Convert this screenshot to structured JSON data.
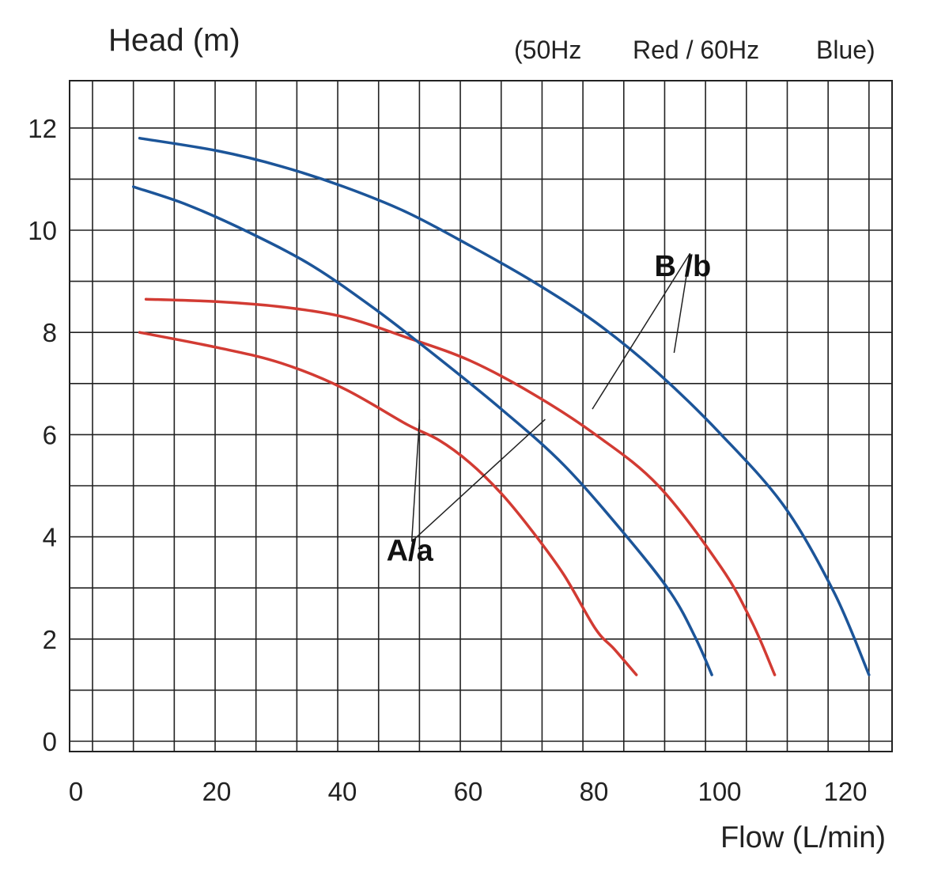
{
  "chart_data": {
    "type": "line",
    "ylabel": "Head (m)",
    "xlabel": "Flow (L/min)",
    "legend_text": [
      "(50Hz",
      "Red / 60Hz",
      "Blue)"
    ],
    "xticks": [
      "0",
      "20",
      "40",
      "60",
      "80",
      "100",
      "120"
    ],
    "yticks": [
      "0",
      "2",
      "4",
      "6",
      "8",
      "10",
      "12"
    ],
    "xlim": [
      0,
      130
    ],
    "ylim": [
      0,
      12.9
    ],
    "grid": true,
    "colors": {
      "red": "#d23b33",
      "blue": "#1c5599",
      "grid": "#222222"
    },
    "annotations": [
      {
        "text": "A/a",
        "x": 48,
        "y": 4.0,
        "targets": [
          [
            52,
            6.3
          ],
          [
            72,
            6.3
          ]
        ]
      },
      {
        "text": "B /b",
        "x": 90,
        "y": 9.3,
        "targets": [
          [
            79.5,
            6.5
          ],
          [
            92.5,
            7.6
          ]
        ]
      }
    ],
    "series": [
      {
        "color": "red",
        "x": [
          7.5,
          20,
          30,
          40,
          50,
          55,
          60,
          65,
          70,
          75,
          80,
          83,
          86.5
        ],
        "y": [
          8.0,
          7.7,
          7.4,
          6.9,
          6.2,
          5.9,
          5.45,
          4.85,
          4.1,
          3.25,
          2.2,
          1.8,
          1.3
        ]
      },
      {
        "color": "red",
        "x": [
          8.5,
          20,
          30,
          40,
          50,
          60,
          70,
          80,
          90,
          100,
          105,
          108.5
        ],
        "y": [
          8.65,
          8.6,
          8.5,
          8.3,
          7.9,
          7.45,
          6.8,
          6.0,
          5.0,
          3.4,
          2.3,
          1.3
        ]
      },
      {
        "color": "blue",
        "x": [
          6.5,
          15,
          25,
          35,
          45,
          55,
          65,
          75,
          85,
          92,
          96,
          98.5
        ],
        "y": [
          10.85,
          10.5,
          9.95,
          9.3,
          8.45,
          7.5,
          6.5,
          5.4,
          4.0,
          2.9,
          2.0,
          1.3
        ]
      },
      {
        "color": "blue",
        "x": [
          7.5,
          20,
          30,
          40,
          50,
          60,
          70,
          80,
          90,
          100,
          110,
          118,
          123.5
        ],
        "y": [
          11.8,
          11.55,
          11.25,
          10.85,
          10.35,
          9.7,
          9.0,
          8.2,
          7.2,
          6.0,
          4.6,
          2.9,
          1.3
        ]
      }
    ]
  }
}
